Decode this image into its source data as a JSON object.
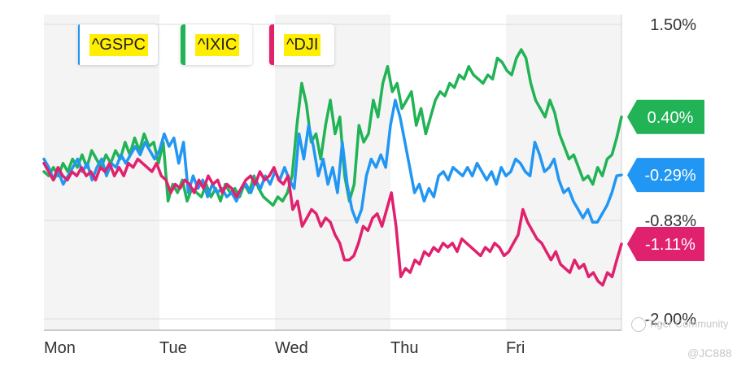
{
  "chart_data": {
    "type": "line",
    "x_labels": [
      "Mon",
      "Tue",
      "Wed",
      "Thu",
      "Fri"
    ],
    "y_ticks": [
      "1.50%",
      "-0.83%",
      "-2.00%"
    ],
    "ylim": [
      -2.0,
      1.5
    ],
    "grid": true,
    "legend_position": "top-left",
    "series": [
      {
        "name": "^GSPC",
        "color": "#2196f3",
        "end_label": "-0.29%",
        "values": [
          -0.1,
          -0.2,
          -0.35,
          -0.25,
          -0.4,
          -0.3,
          -0.2,
          -0.1,
          -0.25,
          -0.15,
          -0.35,
          -0.2,
          -0.1,
          -0.3,
          -0.15,
          -0.2,
          -0.05,
          -0.15,
          -0.05,
          0.05,
          -0.05,
          0.1,
          0.0,
          -0.1,
          0.0,
          0.2,
          0.05,
          0.15,
          -0.15,
          0.1,
          -0.5,
          -0.3,
          -0.45,
          -0.35,
          -0.55,
          -0.4,
          -0.5,
          -0.45,
          -0.55,
          -0.5,
          -0.6,
          -0.45,
          -0.4,
          -0.5,
          -0.35,
          -0.45,
          -0.3,
          -0.4,
          -0.25,
          -0.35,
          -0.2,
          -0.35,
          -0.45,
          0.2,
          -0.1,
          0.3,
          0.05,
          -0.3,
          -0.1,
          -0.4,
          -0.2,
          -0.5,
          0.1,
          -0.4,
          -0.7,
          -0.85,
          -0.7,
          -0.3,
          -0.1,
          -0.2,
          -0.05,
          -0.2,
          0.3,
          0.6,
          0.4,
          0.1,
          -0.2,
          -0.5,
          -0.4,
          -0.6,
          -0.45,
          -0.55,
          -0.3,
          -0.25,
          -0.35,
          -0.2,
          -0.25,
          -0.3,
          -0.2,
          -0.3,
          -0.15,
          -0.25,
          -0.35,
          -0.25,
          -0.4,
          -0.2,
          -0.3,
          -0.25,
          -0.1,
          -0.15,
          -0.25,
          -0.3,
          0.1,
          -0.05,
          -0.25,
          -0.2,
          -0.1,
          -0.35,
          -0.5,
          -0.45,
          -0.6,
          -0.7,
          -0.8,
          -0.7,
          -0.85,
          -0.85,
          -0.75,
          -0.65,
          -0.5,
          -0.3,
          -0.29
        ]
      },
      {
        "name": "^IXIC",
        "color": "#21b355",
        "end_label": "0.40%",
        "values": [
          -0.25,
          -0.3,
          -0.2,
          -0.3,
          -0.15,
          -0.25,
          -0.1,
          -0.2,
          -0.05,
          -0.2,
          0.0,
          -0.1,
          -0.2,
          -0.05,
          -0.15,
          0.0,
          -0.1,
          0.1,
          -0.05,
          0.15,
          0.0,
          0.2,
          0.05,
          0.1,
          -0.15,
          0.1,
          -0.6,
          -0.4,
          -0.5,
          -0.35,
          -0.6,
          -0.45,
          -0.5,
          -0.55,
          -0.4,
          -0.55,
          -0.45,
          -0.6,
          -0.4,
          -0.5,
          -0.45,
          -0.55,
          -0.4,
          -0.5,
          -0.3,
          -0.45,
          -0.55,
          -0.6,
          -0.65,
          -0.55,
          -0.6,
          -0.5,
          -0.3,
          0.3,
          0.8,
          0.55,
          0.1,
          0.2,
          -0.1,
          0.3,
          0.6,
          0.2,
          0.4,
          -0.3,
          -0.6,
          -0.4,
          0.3,
          0.1,
          0.2,
          0.6,
          0.4,
          0.8,
          1.0,
          0.7,
          0.8,
          0.5,
          0.6,
          0.7,
          0.3,
          0.5,
          0.2,
          0.4,
          0.6,
          0.7,
          0.65,
          0.8,
          0.75,
          0.9,
          0.85,
          1.0,
          0.9,
          0.85,
          0.8,
          0.9,
          0.85,
          1.1,
          1.05,
          0.95,
          0.9,
          1.1,
          1.2,
          1.1,
          0.8,
          0.6,
          0.5,
          0.4,
          0.6,
          0.45,
          0.2,
          0.05,
          -0.1,
          -0.05,
          -0.2,
          -0.35,
          -0.3,
          -0.4,
          -0.2,
          -0.3,
          -0.1,
          -0.05,
          0.15,
          0.4
        ]
      },
      {
        "name": "^DJI",
        "color": "#e0216e",
        "end_label": "-1.11%",
        "values": [
          -0.15,
          -0.25,
          -0.35,
          -0.2,
          -0.3,
          -0.35,
          -0.25,
          -0.3,
          -0.2,
          -0.3,
          -0.25,
          -0.35,
          -0.2,
          -0.25,
          -0.15,
          -0.3,
          -0.2,
          -0.3,
          -0.15,
          -0.2,
          -0.1,
          -0.15,
          -0.2,
          -0.25,
          -0.15,
          -0.3,
          -0.35,
          -0.5,
          -0.4,
          -0.45,
          -0.35,
          -0.4,
          -0.5,
          -0.35,
          -0.45,
          -0.3,
          -0.4,
          -0.35,
          -0.5,
          -0.4,
          -0.45,
          -0.55,
          -0.45,
          -0.35,
          -0.3,
          -0.4,
          -0.25,
          -0.35,
          -0.3,
          -0.2,
          -0.35,
          -0.4,
          -0.3,
          -0.7,
          -0.6,
          -0.9,
          -0.8,
          -0.7,
          -0.75,
          -0.9,
          -0.8,
          -0.85,
          -1.0,
          -1.1,
          -1.3,
          -1.3,
          -1.25,
          -1.1,
          -0.9,
          -0.95,
          -0.8,
          -0.75,
          -0.9,
          -0.7,
          -0.5,
          -0.9,
          -1.5,
          -1.4,
          -1.45,
          -1.3,
          -1.35,
          -1.2,
          -1.25,
          -1.15,
          -1.2,
          -1.1,
          -1.15,
          -1.1,
          -1.2,
          -1.05,
          -1.1,
          -1.15,
          -1.2,
          -1.25,
          -1.15,
          -1.2,
          -1.1,
          -1.15,
          -1.25,
          -1.2,
          -1.1,
          -1.0,
          -0.7,
          -0.85,
          -0.95,
          -1.05,
          -1.1,
          -1.2,
          -1.3,
          -1.2,
          -1.35,
          -1.4,
          -1.45,
          -1.3,
          -1.4,
          -1.35,
          -1.5,
          -1.45,
          -1.55,
          -1.6,
          -1.45,
          -1.5,
          -1.3,
          -1.11
        ]
      }
    ]
  },
  "watermark": {
    "community": "Tiger Community",
    "handle": "@JC888"
  }
}
